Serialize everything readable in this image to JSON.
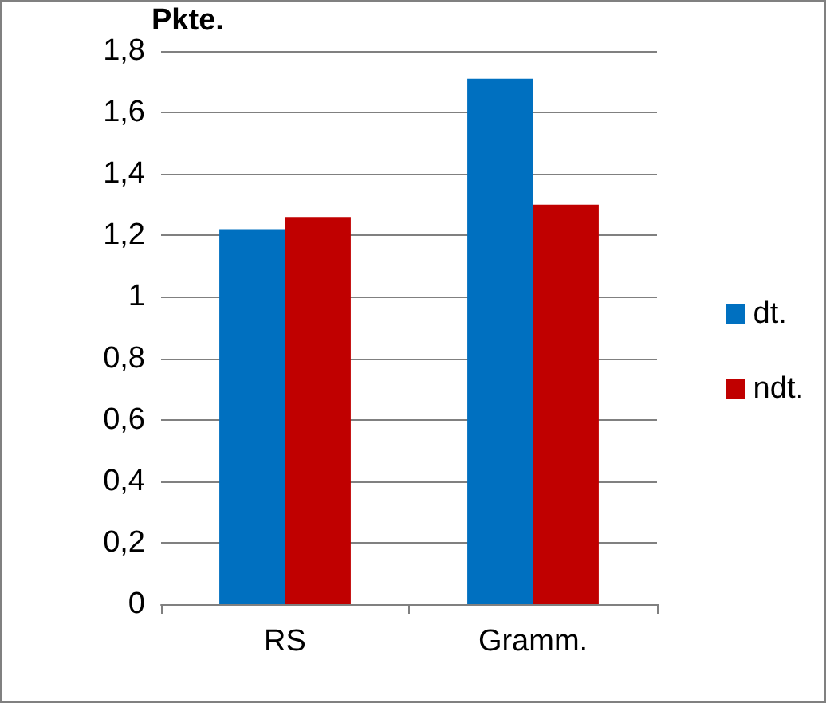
{
  "chart_data": {
    "type": "bar",
    "ylabel": "Pkte.",
    "categories": [
      "RS",
      "Gramm."
    ],
    "series": [
      {
        "name": "dt.",
        "color": "#0070c0",
        "values": [
          1.22,
          1.71
        ]
      },
      {
        "name": "ndt.",
        "color": "#c00000",
        "values": [
          1.26,
          1.3
        ]
      }
    ],
    "ylim": [
      0,
      1.8
    ],
    "yticks": [
      0,
      {
        "value": 0.2,
        "label": "0,2"
      },
      {
        "value": 0.4,
        "label": "0,4"
      },
      {
        "value": 0.6,
        "label": "0,6"
      },
      {
        "value": 0.8,
        "label": "0,8"
      },
      1,
      {
        "value": 1.2,
        "label": "1,2"
      },
      {
        "value": 1.4,
        "label": "1,4"
      },
      {
        "value": 1.6,
        "label": "1,6"
      },
      {
        "value": 1.8,
        "label": "1,8"
      }
    ],
    "grid": "y",
    "legend": "right"
  }
}
